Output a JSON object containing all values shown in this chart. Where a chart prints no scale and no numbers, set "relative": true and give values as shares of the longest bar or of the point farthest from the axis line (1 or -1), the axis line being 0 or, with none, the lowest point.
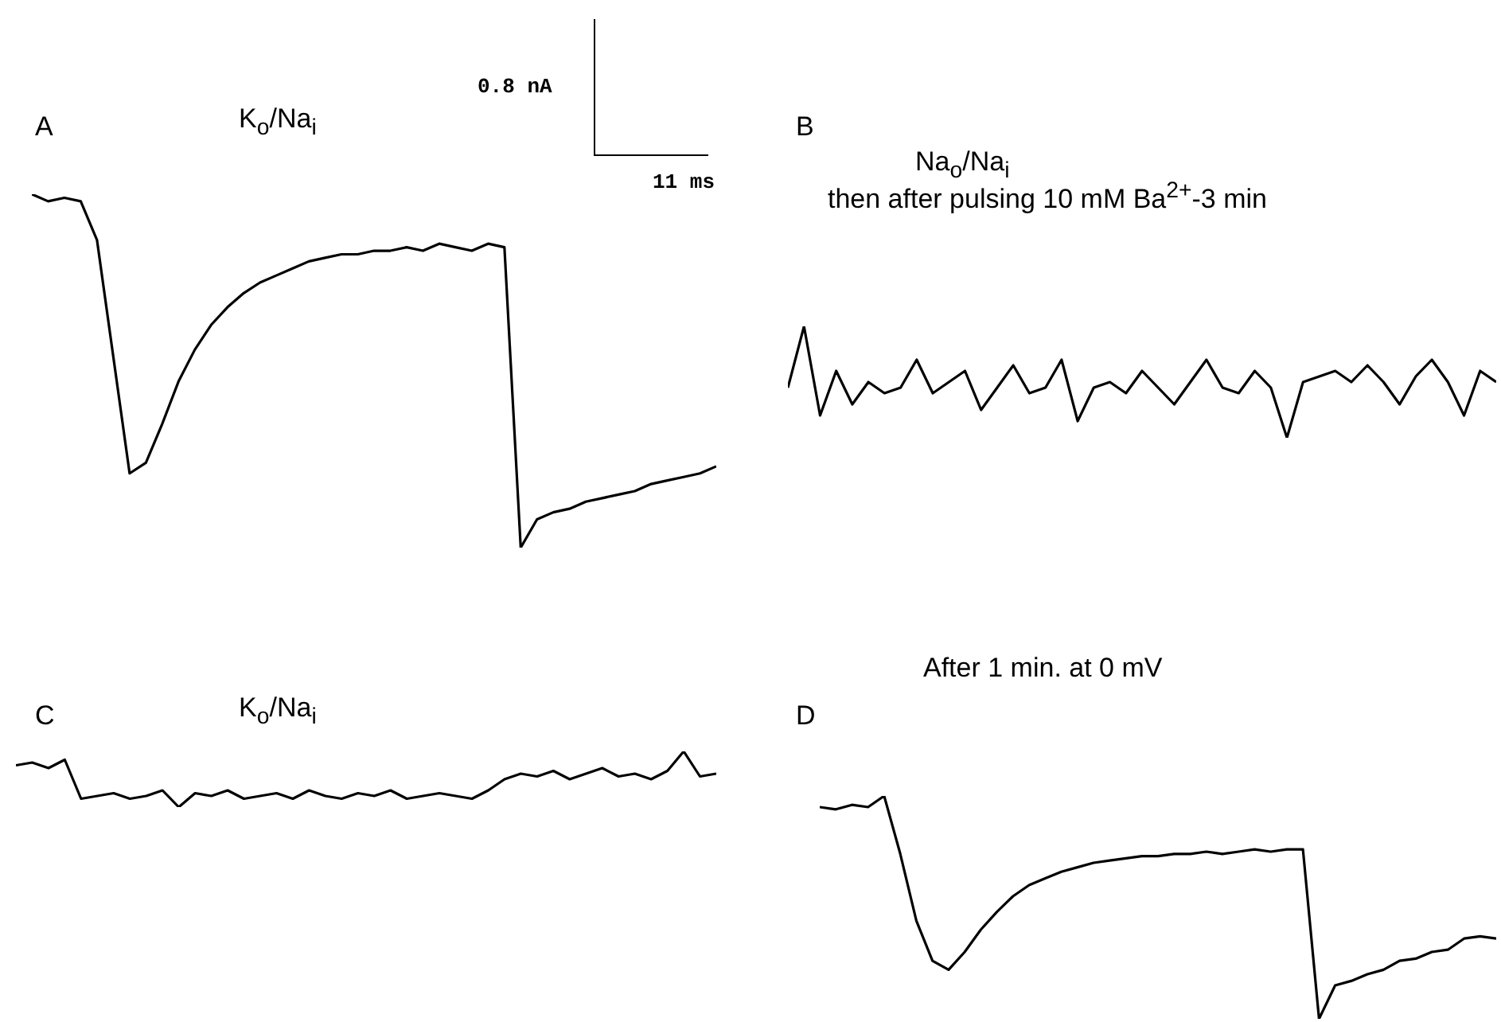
{
  "chart_data": [
    {
      "type": "line",
      "title": "A",
      "subtitle": "K$_{o}$/Na$_{i}$",
      "relative": true,
      "tick_labels": false,
      "annotations": [
        "0.8 nA",
        "11 ms"
      ],
      "categories": [
        null,
        null,
        null,
        null,
        null,
        null,
        null,
        null,
        null,
        null,
        null,
        null,
        null,
        null,
        null,
        null,
        null,
        null,
        null,
        null,
        null,
        null,
        null,
        null,
        null,
        null,
        null,
        null,
        null,
        null,
        null,
        null,
        null,
        null,
        null,
        null,
        null,
        null,
        null,
        null,
        null,
        null,
        null
      ],
      "series": [
        {
          "color": "#000000",
          "values": [
            1,
            0.98,
            0.99,
            0.98,
            0.87,
            0.54,
            0.21,
            0.24,
            0.35,
            0.47,
            0.56,
            0.63,
            0.68,
            0.72,
            0.75,
            0.77,
            0.79,
            0.81,
            0.82,
            0.83,
            0.83,
            0.84,
            0.84,
            0.85,
            0.84,
            0.86,
            0.85,
            0.84,
            0.86,
            0.85,
            0,
            0.08,
            0.1,
            0.11,
            0.13,
            0.14,
            0.15,
            0.16,
            0.18,
            0.19,
            0.2,
            0.21,
            0.23
          ]
        }
      ]
    },
    {
      "type": "line",
      "title": "B",
      "subtitle": "Na$_{o}$/Na$_{i}$",
      "relative": true,
      "tick_labels": false,
      "annotations": [
        "then after pulsing 10 mM Ba$^{2+}$-3 min"
      ],
      "categories": [
        null,
        null,
        null,
        null,
        null,
        null,
        null,
        null,
        null,
        null,
        null,
        null,
        null,
        null,
        null,
        null,
        null,
        null,
        null,
        null,
        null,
        null,
        null,
        null,
        null,
        null,
        null,
        null,
        null,
        null,
        null,
        null,
        null,
        null,
        null,
        null,
        null,
        null,
        null,
        null,
        null,
        null,
        null,
        null,
        null
      ],
      "series": [
        {
          "color": "#000000",
          "values": [
            0.45,
            1,
            0.2,
            0.6,
            0.3,
            0.5,
            0.4,
            0.45,
            0.7,
            0.4,
            0.5,
            0.6,
            0.25,
            0.45,
            0.65,
            0.4,
            0.45,
            0.7,
            0.15,
            0.45,
            0.5,
            0.4,
            0.6,
            0.45,
            0.3,
            0.5,
            0.7,
            0.45,
            0.4,
            0.6,
            0.45,
            0,
            0.5,
            0.55,
            0.6,
            0.5,
            0.65,
            0.5,
            0.3,
            0.55,
            0.7,
            0.5,
            0.2,
            0.6,
            0.5
          ]
        }
      ]
    },
    {
      "type": "line",
      "title": "C",
      "subtitle": "K$_{o}$/Na$_{i}$",
      "relative": true,
      "tick_labels": false,
      "categories": [
        null,
        null,
        null,
        null,
        null,
        null,
        null,
        null,
        null,
        null,
        null,
        null,
        null,
        null,
        null,
        null,
        null,
        null,
        null,
        null,
        null,
        null,
        null,
        null,
        null,
        null,
        null,
        null,
        null,
        null,
        null,
        null,
        null,
        null,
        null,
        null,
        null,
        null,
        null,
        null,
        null,
        null,
        null,
        null
      ],
      "series": [
        {
          "color": "#000000",
          "values": [
            0.75,
            0.8,
            0.7,
            0.85,
            0.15,
            0.2,
            0.25,
            0.15,
            0.2,
            0.3,
            0,
            0.25,
            0.2,
            0.3,
            0.15,
            0.2,
            0.25,
            0.15,
            0.3,
            0.2,
            0.15,
            0.25,
            0.2,
            0.3,
            0.15,
            0.2,
            0.25,
            0.2,
            0.15,
            0.3,
            0.5,
            0.6,
            0.55,
            0.65,
            0.5,
            0.6,
            0.7,
            0.55,
            0.6,
            0.5,
            0.65,
            1,
            0.55,
            0.6
          ]
        }
      ]
    },
    {
      "type": "line",
      "title": "D",
      "subtitle": "After 1 min. at 0 mV",
      "relative": true,
      "tick_labels": false,
      "categories": [
        null,
        null,
        null,
        null,
        null,
        null,
        null,
        null,
        null,
        null,
        null,
        null,
        null,
        null,
        null,
        null,
        null,
        null,
        null,
        null,
        null,
        null,
        null,
        null,
        null,
        null,
        null,
        null,
        null,
        null,
        null,
        null,
        null,
        null,
        null,
        null,
        null,
        null,
        null,
        null,
        null,
        null,
        null
      ],
      "series": [
        {
          "color": "#000000",
          "values": [
            0.95,
            0.94,
            0.96,
            0.95,
            1,
            0.74,
            0.44,
            0.26,
            0.22,
            0.3,
            0.4,
            0.48,
            0.55,
            0.6,
            0.63,
            0.66,
            0.68,
            0.7,
            0.71,
            0.72,
            0.73,
            0.73,
            0.74,
            0.74,
            0.75,
            0.74,
            0.75,
            0.76,
            0.75,
            0.76,
            0.76,
            0,
            0.15,
            0.17,
            0.2,
            0.22,
            0.26,
            0.27,
            0.3,
            0.31,
            0.36,
            0.37,
            0.36
          ]
        }
      ]
    }
  ]
}
